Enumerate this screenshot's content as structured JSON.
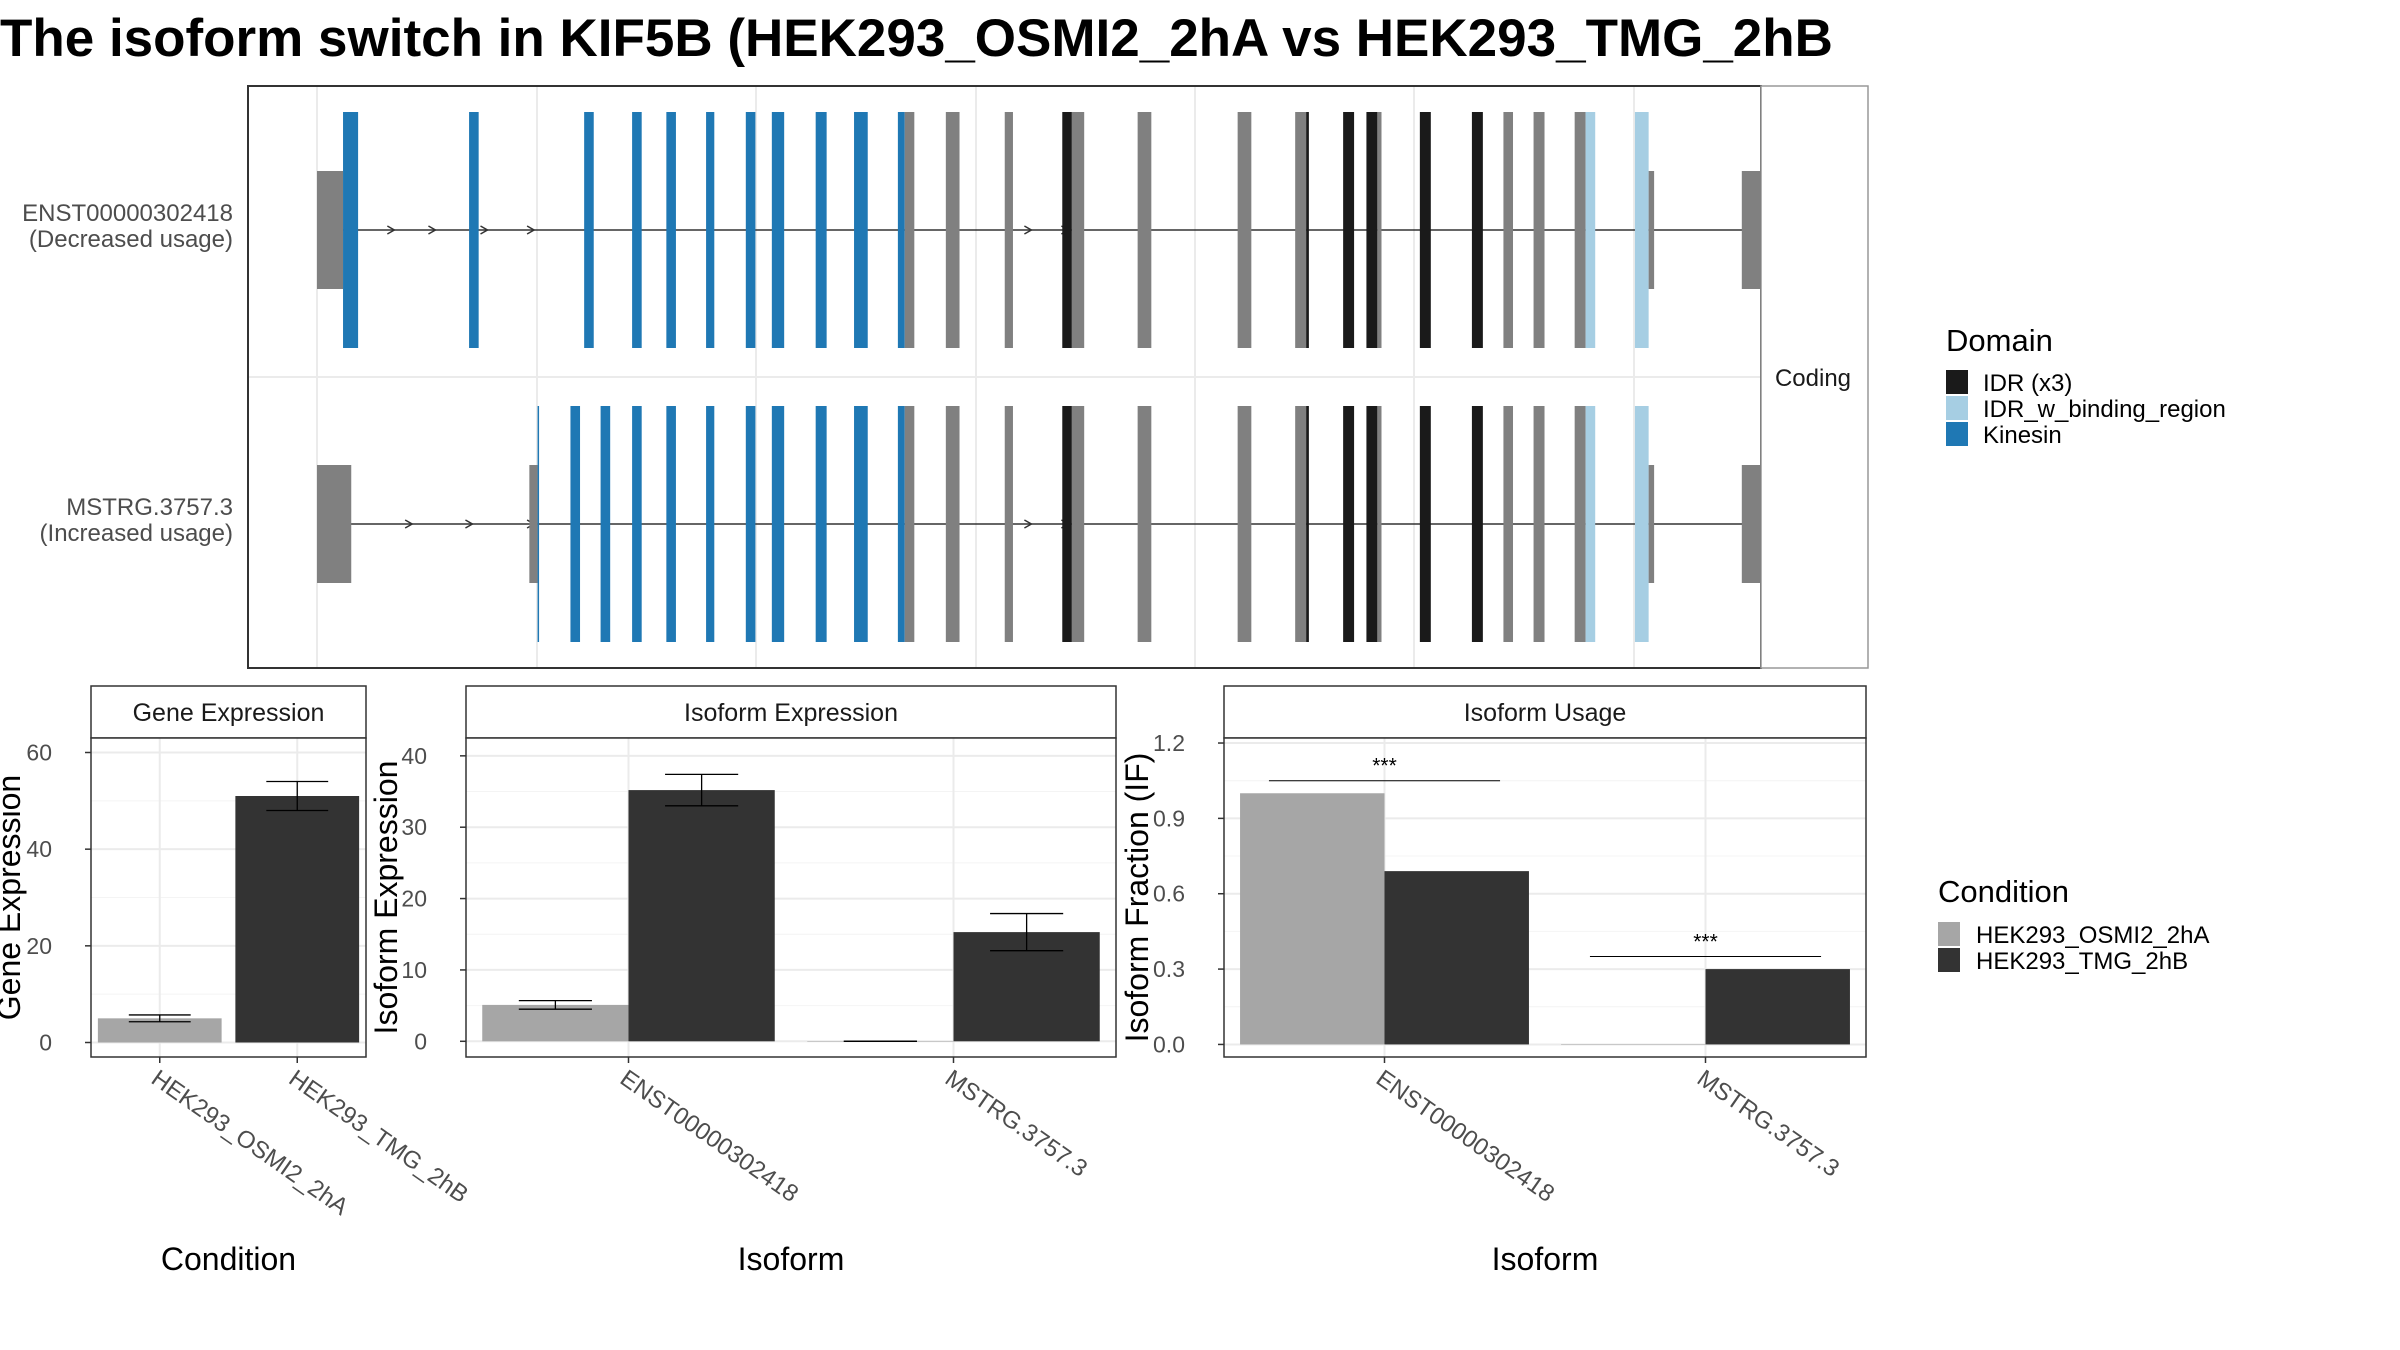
{
  "title": "The isoform switch in KIF5B (HEK293_OSMI2_2hA vs HEK293_TMG_2hB",
  "colors": {
    "utr": "#808080",
    "intron": "#333333",
    "idr": "#1a1a1a",
    "idr_binding": "#a6cee3",
    "kinesin": "#1f78b4",
    "cond_a": "#a6a6a6",
    "cond_b": "#333333",
    "grid": "#ebebeb",
    "panel_border": "#333333",
    "strip_border": "#999999"
  },
  "chart_data": [
    {
      "type": "gene-structure",
      "facet_label": "Coding",
      "isoforms": [
        {
          "id": "ENST00000302418",
          "usage": "(Decreased usage)",
          "exons": [
            {
              "start": 0,
              "end": 19,
              "domain": "utr",
              "height": "utr"
            },
            {
              "start": 19,
              "end": 30,
              "domain": "kinesin",
              "height": "cds"
            },
            {
              "start": 111,
              "end": 118,
              "domain": "kinesin",
              "height": "cds"
            },
            {
              "start": 195,
              "end": 202,
              "domain": "kinesin",
              "height": "cds"
            },
            {
              "start": 230,
              "end": 237,
              "domain": "kinesin",
              "height": "cds"
            },
            {
              "start": 255,
              "end": 262,
              "domain": "kinesin",
              "height": "cds"
            },
            {
              "start": 284,
              "end": 290,
              "domain": "kinesin",
              "height": "cds"
            },
            {
              "start": 313,
              "end": 320,
              "domain": "kinesin",
              "height": "cds"
            },
            {
              "start": 332,
              "end": 341,
              "domain": "kinesin",
              "height": "cds"
            },
            {
              "start": 364,
              "end": 372,
              "domain": "kinesin",
              "height": "cds"
            },
            {
              "start": 392,
              "end": 402,
              "domain": "kinesin",
              "height": "cds"
            },
            {
              "start": 424,
              "end": 429,
              "domain": "kinesin",
              "height": "cds"
            },
            {
              "start": 429,
              "end": 436,
              "domain": "none",
              "height": "cds"
            },
            {
              "start": 459,
              "end": 469,
              "domain": "none",
              "height": "cds"
            },
            {
              "start": 502,
              "end": 508,
              "domain": "none",
              "height": "cds"
            },
            {
              "start": 544,
              "end": 551,
              "domain": "idr",
              "height": "cds"
            },
            {
              "start": 551,
              "end": 560,
              "domain": "none",
              "height": "cds"
            },
            {
              "start": 599,
              "end": 609,
              "domain": "none",
              "height": "cds"
            },
            {
              "start": 672,
              "end": 682,
              "domain": "none",
              "height": "cds"
            },
            {
              "start": 714,
              "end": 722,
              "domain": "none",
              "height": "cds"
            },
            {
              "start": 722,
              "end": 724,
              "domain": "idr",
              "height": "cds"
            },
            {
              "start": 749,
              "end": 757,
              "domain": "idr",
              "height": "cds"
            },
            {
              "start": 766,
              "end": 774,
              "domain": "idr",
              "height": "cds"
            },
            {
              "start": 774,
              "end": 777,
              "domain": "none",
              "height": "cds"
            },
            {
              "start": 805,
              "end": 813,
              "domain": "idr",
              "height": "cds"
            },
            {
              "start": 843,
              "end": 851,
              "domain": "idr",
              "height": "cds"
            },
            {
              "start": 866,
              "end": 873,
              "domain": "none",
              "height": "cds"
            },
            {
              "start": 888,
              "end": 896,
              "domain": "none",
              "height": "cds"
            },
            {
              "start": 918,
              "end": 926,
              "domain": "none",
              "height": "cds"
            },
            {
              "start": 926,
              "end": 933,
              "domain": "idr_binding",
              "height": "cds"
            },
            {
              "start": 962,
              "end": 972,
              "domain": "idr_binding",
              "height": "cds"
            },
            {
              "start": 972,
              "end": 976,
              "domain": "none",
              "height": "utr"
            },
            {
              "start": 1040,
              "end": 1086,
              "domain": "utr",
              "height": "utr"
            }
          ],
          "arrows": [
            55,
            85,
            123,
            157,
            520,
            547
          ]
        },
        {
          "id": "MSTRG.3757.3",
          "usage": "(Increased usage)",
          "exons": [
            {
              "start": 0,
              "end": 25,
              "domain": "utr",
              "height": "utr"
            },
            {
              "start": 155,
              "end": 161,
              "domain": "utr",
              "height": "utr"
            },
            {
              "start": 161,
              "end": 162,
              "domain": "kinesin",
              "height": "cds"
            },
            {
              "start": 185,
              "end": 192,
              "domain": "kinesin",
              "height": "cds"
            },
            {
              "start": 207,
              "end": 214,
              "domain": "kinesin",
              "height": "cds"
            },
            {
              "start": 230,
              "end": 237,
              "domain": "kinesin",
              "height": "cds"
            },
            {
              "start": 255,
              "end": 262,
              "domain": "kinesin",
              "height": "cds"
            },
            {
              "start": 284,
              "end": 290,
              "domain": "kinesin",
              "height": "cds"
            },
            {
              "start": 313,
              "end": 320,
              "domain": "kinesin",
              "height": "cds"
            },
            {
              "start": 332,
              "end": 341,
              "domain": "kinesin",
              "height": "cds"
            },
            {
              "start": 364,
              "end": 372,
              "domain": "kinesin",
              "height": "cds"
            },
            {
              "start": 392,
              "end": 402,
              "domain": "kinesin",
              "height": "cds"
            },
            {
              "start": 424,
              "end": 429,
              "domain": "kinesin",
              "height": "cds"
            },
            {
              "start": 429,
              "end": 436,
              "domain": "none",
              "height": "cds"
            },
            {
              "start": 459,
              "end": 469,
              "domain": "none",
              "height": "cds"
            },
            {
              "start": 502,
              "end": 508,
              "domain": "none",
              "height": "cds"
            },
            {
              "start": 544,
              "end": 551,
              "domain": "idr",
              "height": "cds"
            },
            {
              "start": 551,
              "end": 560,
              "domain": "none",
              "height": "cds"
            },
            {
              "start": 599,
              "end": 609,
              "domain": "none",
              "height": "cds"
            },
            {
              "start": 672,
              "end": 682,
              "domain": "none",
              "height": "cds"
            },
            {
              "start": 714,
              "end": 722,
              "domain": "none",
              "height": "cds"
            },
            {
              "start": 722,
              "end": 724,
              "domain": "idr",
              "height": "cds"
            },
            {
              "start": 749,
              "end": 757,
              "domain": "idr",
              "height": "cds"
            },
            {
              "start": 766,
              "end": 774,
              "domain": "idr",
              "height": "cds"
            },
            {
              "start": 774,
              "end": 777,
              "domain": "none",
              "height": "cds"
            },
            {
              "start": 805,
              "end": 813,
              "domain": "idr",
              "height": "cds"
            },
            {
              "start": 843,
              "end": 851,
              "domain": "idr",
              "height": "cds"
            },
            {
              "start": 866,
              "end": 873,
              "domain": "none",
              "height": "cds"
            },
            {
              "start": 888,
              "end": 896,
              "domain": "none",
              "height": "cds"
            },
            {
              "start": 918,
              "end": 926,
              "domain": "none",
              "height": "cds"
            },
            {
              "start": 926,
              "end": 933,
              "domain": "idr_binding",
              "height": "cds"
            },
            {
              "start": 962,
              "end": 972,
              "domain": "idr_binding",
              "height": "cds"
            },
            {
              "start": 972,
              "end": 976,
              "domain": "none",
              "height": "utr"
            },
            {
              "start": 1040,
              "end": 1055,
              "domain": "utr",
              "height": "utr"
            }
          ],
          "arrows": [
            68,
            112,
            157,
            520,
            547
          ]
        }
      ],
      "legend": {
        "title": "Domain",
        "items": [
          {
            "label": "IDR (x3)",
            "key": "idr"
          },
          {
            "label": "IDR_w_binding_region",
            "key": "idr_binding"
          },
          {
            "label": "Kinesin",
            "key": "kinesin"
          }
        ]
      }
    },
    {
      "type": "bar",
      "strip": "Gene Expression",
      "xlabel": "Condition",
      "ylabel": "Gene Expression",
      "ylim": [
        -3,
        63
      ],
      "yticks": [
        0,
        20,
        40,
        60
      ],
      "categories": [
        "HEK293_OSMI2_2hA",
        "HEK293_TMG_2hB"
      ],
      "series": [
        {
          "name": "HEK293_OSMI2_2hA",
          "values": [
            5.0,
            null
          ],
          "err": [
            0.7,
            null
          ]
        },
        {
          "name": "HEK293_TMG_2hB",
          "values": [
            null,
            51.0
          ],
          "err": [
            null,
            3.0
          ]
        }
      ]
    },
    {
      "type": "bar",
      "strip": "Isoform Expression",
      "xlabel": "Isoform",
      "ylabel": "Isoform Expression",
      "ylim": [
        -2.2,
        42.5
      ],
      "yticks": [
        0,
        10,
        20,
        30,
        40
      ],
      "categories": [
        "ENST00000302418",
        "MSTRG.3757.3"
      ],
      "series": [
        {
          "name": "HEK293_OSMI2_2hA",
          "values": [
            5.1,
            0.0
          ],
          "err": [
            0.6,
            0.0
          ]
        },
        {
          "name": "HEK293_TMG_2hB",
          "values": [
            35.2,
            15.3
          ],
          "err": [
            2.2,
            2.6
          ]
        }
      ]
    },
    {
      "type": "bar",
      "strip": "Isoform Usage",
      "xlabel": "Isoform",
      "ylabel": "Isoform Fraction (IF)",
      "ylim": [
        -0.05,
        1.22
      ],
      "yticks": [
        0.0,
        0.3,
        0.6,
        0.9,
        1.2
      ],
      "categories": [
        "ENST00000302418",
        "MSTRG.3757.3"
      ],
      "series": [
        {
          "name": "HEK293_OSMI2_2hA",
          "values": [
            1.0,
            0.0
          ]
        },
        {
          "name": "HEK293_TMG_2hB",
          "values": [
            0.69,
            0.3
          ]
        }
      ],
      "significance": [
        {
          "category": "ENST00000302418",
          "label": "***",
          "y": 1.05
        },
        {
          "category": "MSTRG.3757.3",
          "label": "***",
          "y": 0.35
        }
      ]
    }
  ],
  "condition_legend": {
    "title": "Condition",
    "items": [
      {
        "label": "HEK293_OSMI2_2hA",
        "key": "cond_a"
      },
      {
        "label": "HEK293_TMG_2hB",
        "key": "cond_b"
      }
    ]
  }
}
